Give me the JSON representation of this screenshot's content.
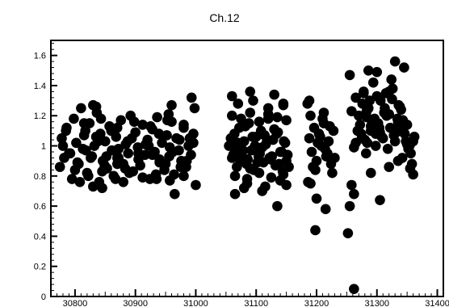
{
  "chart_data": {
    "type": "scatter",
    "title": "Ch.12",
    "xlabel": "",
    "ylabel": "",
    "xlim": [
      30760,
      31410
    ],
    "ylim": [
      0,
      1.7
    ],
    "grid": false,
    "legend": "none",
    "x_ticks": [
      30800,
      30900,
      31000,
      31100,
      31200,
      31300,
      31400
    ],
    "y_ticks": [
      0,
      0.2,
      0.4,
      0.6,
      0.8,
      1,
      1.2,
      1.4,
      1.6
    ],
    "x_tick_labels": [
      "30800",
      "30900",
      "31000",
      "31100",
      "31200",
      "31300",
      "31400"
    ],
    "y_tick_labels": [
      "0",
      "0.2",
      "0.4",
      "0.6",
      "0.8",
      "1",
      "1.2",
      "1.4",
      "1.6"
    ],
    "marker_color": "#000000",
    "series": [
      {
        "x": [
          30775,
          30778,
          30782,
          30786,
          30790,
          30795,
          30798,
          30802,
          30806,
          30810,
          30813,
          30817,
          30820,
          30824,
          30828,
          30832,
          30836,
          30840,
          30842,
          30846,
          30850,
          30853,
          30857,
          30861,
          30864,
          30868,
          30872,
          30876,
          30880,
          30884,
          30888,
          30892,
          30896,
          30900,
          30904,
          30908,
          30912,
          30916,
          30920,
          30924,
          30928,
          30932,
          30936,
          30940,
          30944,
          30948,
          30952,
          30956,
          30960,
          30964,
          30968,
          30972,
          30976,
          30980,
          30984,
          30988,
          30992,
          30996,
          31000,
          30780,
          30792,
          30804,
          30815,
          30826,
          30838,
          30849,
          30860,
          30872,
          30883,
          30894,
          30905,
          30917,
          30928,
          30939,
          30950,
          30962,
          30973,
          30985,
          30996,
          30785,
          30800,
          30818,
          30835,
          30852,
          30870,
          30887,
          30905,
          30922,
          30940,
          30957,
          30975,
          30990,
          30808,
          30822,
          30845,
          30867,
          30890,
          30912,
          30934,
          30957,
          30980,
          30815,
          30843,
          30870,
          30898,
          30925,
          30953,
          30980,
          30830,
          30880,
          30935,
          30965,
          30993,
          30830,
          30835,
          30960,
          30955,
          30998,
          30845,
          30870
        ],
        "y": [
          0.86,
          1.05,
          0.92,
          1.12,
          0.95,
          0.78,
          1.18,
          1.02,
          0.88,
          1.25,
          0.98,
          1.1,
          0.82,
          1.15,
          0.93,
          1.0,
          1.22,
          0.76,
          1.08,
          0.9,
          1.03,
          0.85,
          1.13,
          0.97,
          0.8,
          1.06,
          0.92,
          1.17,
          0.88,
          1.01,
          0.95,
          1.2,
          0.83,
          1.09,
          0.99,
          0.87,
          1.14,
          0.94,
          1.04,
          0.78,
          1.11,
          0.96,
          1.19,
          0.89,
          1.02,
          0.84,
          1.07,
          0.93,
          1.16,
          0.81,
          1.05,
          0.97,
          0.9,
          1.12,
          0.86,
          1.0,
          0.94,
          1.08,
          0.74,
          1.0,
          0.95,
          0.89,
          1.07,
          0.92,
          1.03,
          0.87,
          1.1,
          0.98,
          0.85,
          1.05,
          0.91,
          1.01,
          0.94,
          1.08,
          0.88,
          0.96,
          1.04,
          0.9,
          1.02,
          1.1,
          0.84,
          0.97,
          1.06,
          0.93,
          0.88,
          1.03,
          0.95,
          1.0,
          0.91,
          0.99,
          0.86,
          1.05,
          0.76,
          0.8,
          0.83,
          0.78,
          0.82,
          0.79,
          0.81,
          0.77,
          0.8,
          1.15,
          1.18,
          1.12,
          1.16,
          1.13,
          1.17,
          1.14,
          0.73,
          0.76,
          0.78,
          0.68,
          1.32,
          1.27,
          1.26,
          1.27,
          1.21,
          1.25,
          0.72,
          0.92
        ]
      },
      {
        "x": [
          31055,
          31060,
          31064,
          31068,
          31072,
          31076,
          31080,
          31084,
          31088,
          31092,
          31096,
          31100,
          31104,
          31108,
          31112,
          31116,
          31120,
          31124,
          31128,
          31132,
          31136,
          31140,
          31144,
          31148,
          31152,
          31058,
          31066,
          31074,
          31082,
          31090,
          31098,
          31106,
          31114,
          31122,
          31130,
          31138,
          31146,
          31154,
          31062,
          31070,
          31078,
          31086,
          31094,
          31102,
          31110,
          31118,
          31126,
          31134,
          31142,
          31150,
          31060,
          31075,
          31090,
          31105,
          31120,
          31135,
          31150,
          31065,
          31085,
          31105,
          31125,
          31145,
          31070,
          31095,
          31120,
          31145,
          31080,
          31085,
          31110,
          31115,
          31140,
          31150,
          31060,
          31090,
          31130,
          31145,
          31135,
          31065
        ],
        "y": [
          1.0,
          0.92,
          1.08,
          0.86,
          1.12,
          0.95,
          1.03,
          0.88,
          1.15,
          0.97,
          0.84,
          1.06,
          0.93,
          1.1,
          0.89,
          1.01,
          1.18,
          0.91,
          1.04,
          0.87,
          1.09,
          0.96,
          0.83,
          1.02,
          0.94,
          1.05,
          0.98,
          0.9,
          1.13,
          0.85,
          1.0,
          0.95,
          1.07,
          0.92,
          1.11,
          0.88,
          1.03,
          0.86,
          0.94,
          1.02,
          0.97,
          0.91,
          1.06,
          0.89,
          0.99,
          1.04,
          0.93,
          1.08,
          0.96,
          0.9,
          1.2,
          1.18,
          1.22,
          1.16,
          1.21,
          1.19,
          1.17,
          0.8,
          0.78,
          0.82,
          0.79,
          0.81,
          1.28,
          1.3,
          1.25,
          1.27,
          0.72,
          0.75,
          0.7,
          0.73,
          0.77,
          0.74,
          1.33,
          1.36,
          1.34,
          1.28,
          0.6,
          0.68
        ]
      },
      {
        "x": [
          31185,
          31188,
          31192,
          31196,
          31200,
          31204,
          31208,
          31212,
          31216,
          31220,
          31224,
          31228,
          31190,
          31198,
          31206,
          31214,
          31222,
          31230,
          31186,
          31202,
          31218,
          31194,
          31210,
          31226,
          31188,
          31212,
          31200,
          31198,
          31215,
          31190,
          31255,
          31258,
          31262,
          31255,
          31252,
          31258,
          31262,
          31265,
          31262
        ],
        "y": [
          1.28,
          1.05,
          0.96,
          1.12,
          0.9,
          1.08,
          1.0,
          1.15,
          0.93,
          1.03,
          0.88,
          1.1,
          1.2,
          0.84,
          1.06,
          0.98,
          1.13,
          0.92,
          0.76,
          1.02,
          0.95,
          0.86,
          1.18,
          0.82,
          1.3,
          1.22,
          0.65,
          0.44,
          0.58,
          0.75,
          1.47,
          1.23,
          0.99,
          0.6,
          0.42,
          0.74,
          0.68,
          1.32,
          0.05
        ]
      },
      {
        "x": [
          31265,
          31270,
          31274,
          31278,
          31282,
          31286,
          31290,
          31294,
          31298,
          31302,
          31306,
          31310,
          31314,
          31318,
          31322,
          31326,
          31330,
          31334,
          31338,
          31342,
          31346,
          31350,
          31354,
          31358,
          31362,
          31268,
          31276,
          31284,
          31292,
          31300,
          31308,
          31316,
          31324,
          31332,
          31340,
          31348,
          31356,
          31272,
          31280,
          31288,
          31296,
          31304,
          31312,
          31320,
          31328,
          31336,
          31344,
          31352,
          31360,
          31275,
          31290,
          31305,
          31320,
          31335,
          31350,
          31283,
          31298,
          31313,
          31328,
          31343,
          31278,
          31286,
          31300,
          31315,
          31330,
          31345,
          31355,
          31360,
          31290,
          31305,
          31320,
          31335,
          31325,
          31283
        ],
        "y": [
          1.02,
          1.2,
          1.08,
          1.35,
          0.95,
          1.25,
          1.1,
          1.42,
          1.0,
          1.15,
          1.3,
          1.05,
          1.22,
          0.98,
          1.12,
          1.38,
          1.03,
          1.18,
          1.26,
          0.92,
          1.08,
          1.14,
          1.0,
          0.88,
          1.06,
          1.1,
          1.28,
          1.02,
          1.16,
          1.33,
          1.06,
          1.2,
          1.44,
          1.09,
          1.24,
          1.03,
          0.95,
          1.14,
          1.04,
          1.3,
          1.18,
          1.12,
          1.22,
          1.36,
          1.07,
          1.27,
          1.12,
          0.98,
          1.03,
          1.05,
          1.13,
          1.09,
          1.21,
          1.16,
          1.01,
          1.19,
          1.08,
          1.25,
          1.11,
          1.17,
          1.36,
          1.5,
          1.49,
          1.35,
          1.56,
          1.52,
          0.85,
          0.81,
          0.82,
          0.64,
          0.86,
          0.9,
          1.31,
          1.23
        ]
      }
    ]
  }
}
